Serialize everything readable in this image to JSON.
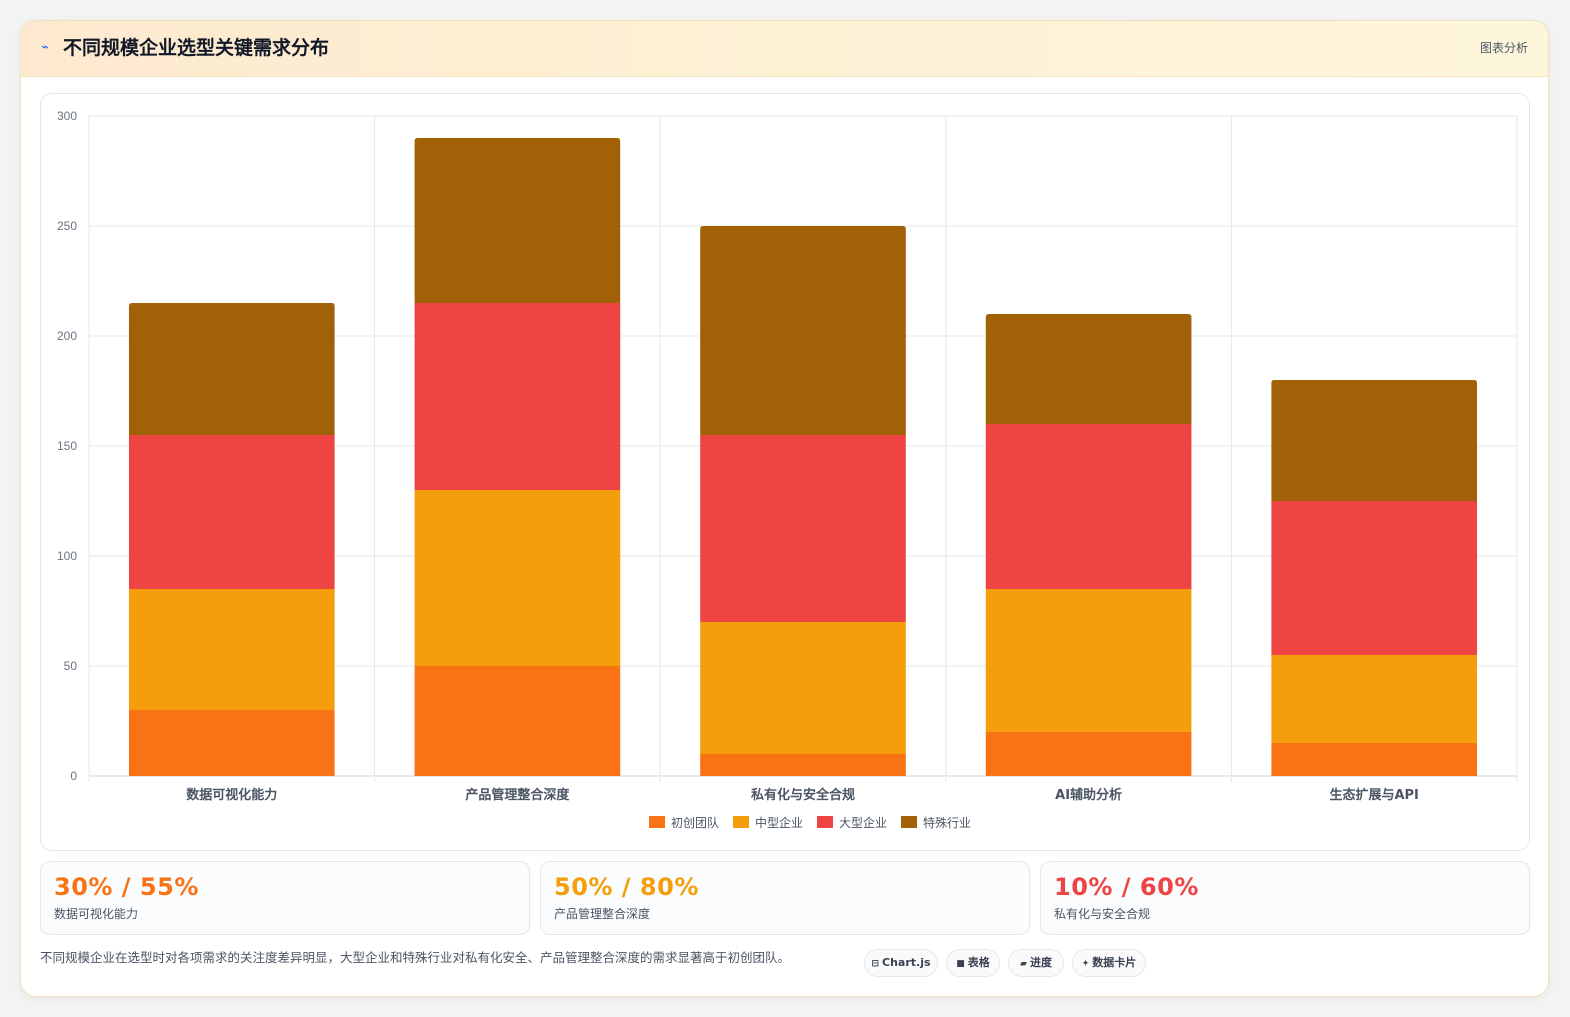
{
  "header": {
    "title": "不同规模企业选型关键需求分布",
    "title_icon": "chart-icon",
    "badge": "图表分析"
  },
  "chart_data": {
    "type": "bar",
    "stacked": true,
    "categories": [
      "数据可视化能力",
      "产品管理整合深度",
      "私有化与安全合规",
      "AI辅助分析",
      "生态扩展与API"
    ],
    "series": [
      {
        "name": "初创团队",
        "color": "#f97316",
        "values": [
          30,
          50,
          10,
          20,
          15
        ]
      },
      {
        "name": "中型企业",
        "color": "#f59e0b",
        "values": [
          55,
          80,
          60,
          65,
          40
        ]
      },
      {
        "name": "大型企业",
        "color": "#ef4444",
        "values": [
          70,
          85,
          85,
          75,
          70
        ]
      },
      {
        "name": "特殊行业",
        "color": "#a16207",
        "values": [
          60,
          75,
          95,
          50,
          55
        ]
      }
    ],
    "ylim": [
      0,
      300
    ],
    "yticks": [
      "0",
      "50",
      "100",
      "150",
      "200",
      "250",
      "300"
    ],
    "grid": true,
    "legend": "bottom"
  },
  "stats": [
    {
      "value": "30% / 55%",
      "label": "数据可视化能力",
      "color": "#f97316"
    },
    {
      "value": "50% / 80%",
      "label": "产品管理整合深度",
      "color": "#f59e0b"
    },
    {
      "value": "10% / 60%",
      "label": "私有化与安全合规",
      "color": "#ef4444"
    }
  ],
  "footnote": "不同规模企业在选型时对各项需求的关注度差异明显，大型企业和特殊行业对私有化安全、产品管理整合深度的需求显著高于初创团队。",
  "tags": [
    {
      "icon": "⊟",
      "label": "Chart.js"
    },
    {
      "icon": "■",
      "label": "表格"
    },
    {
      "icon": "▰",
      "label": "进度"
    },
    {
      "icon": "✦",
      "label": "数据卡片"
    }
  ]
}
